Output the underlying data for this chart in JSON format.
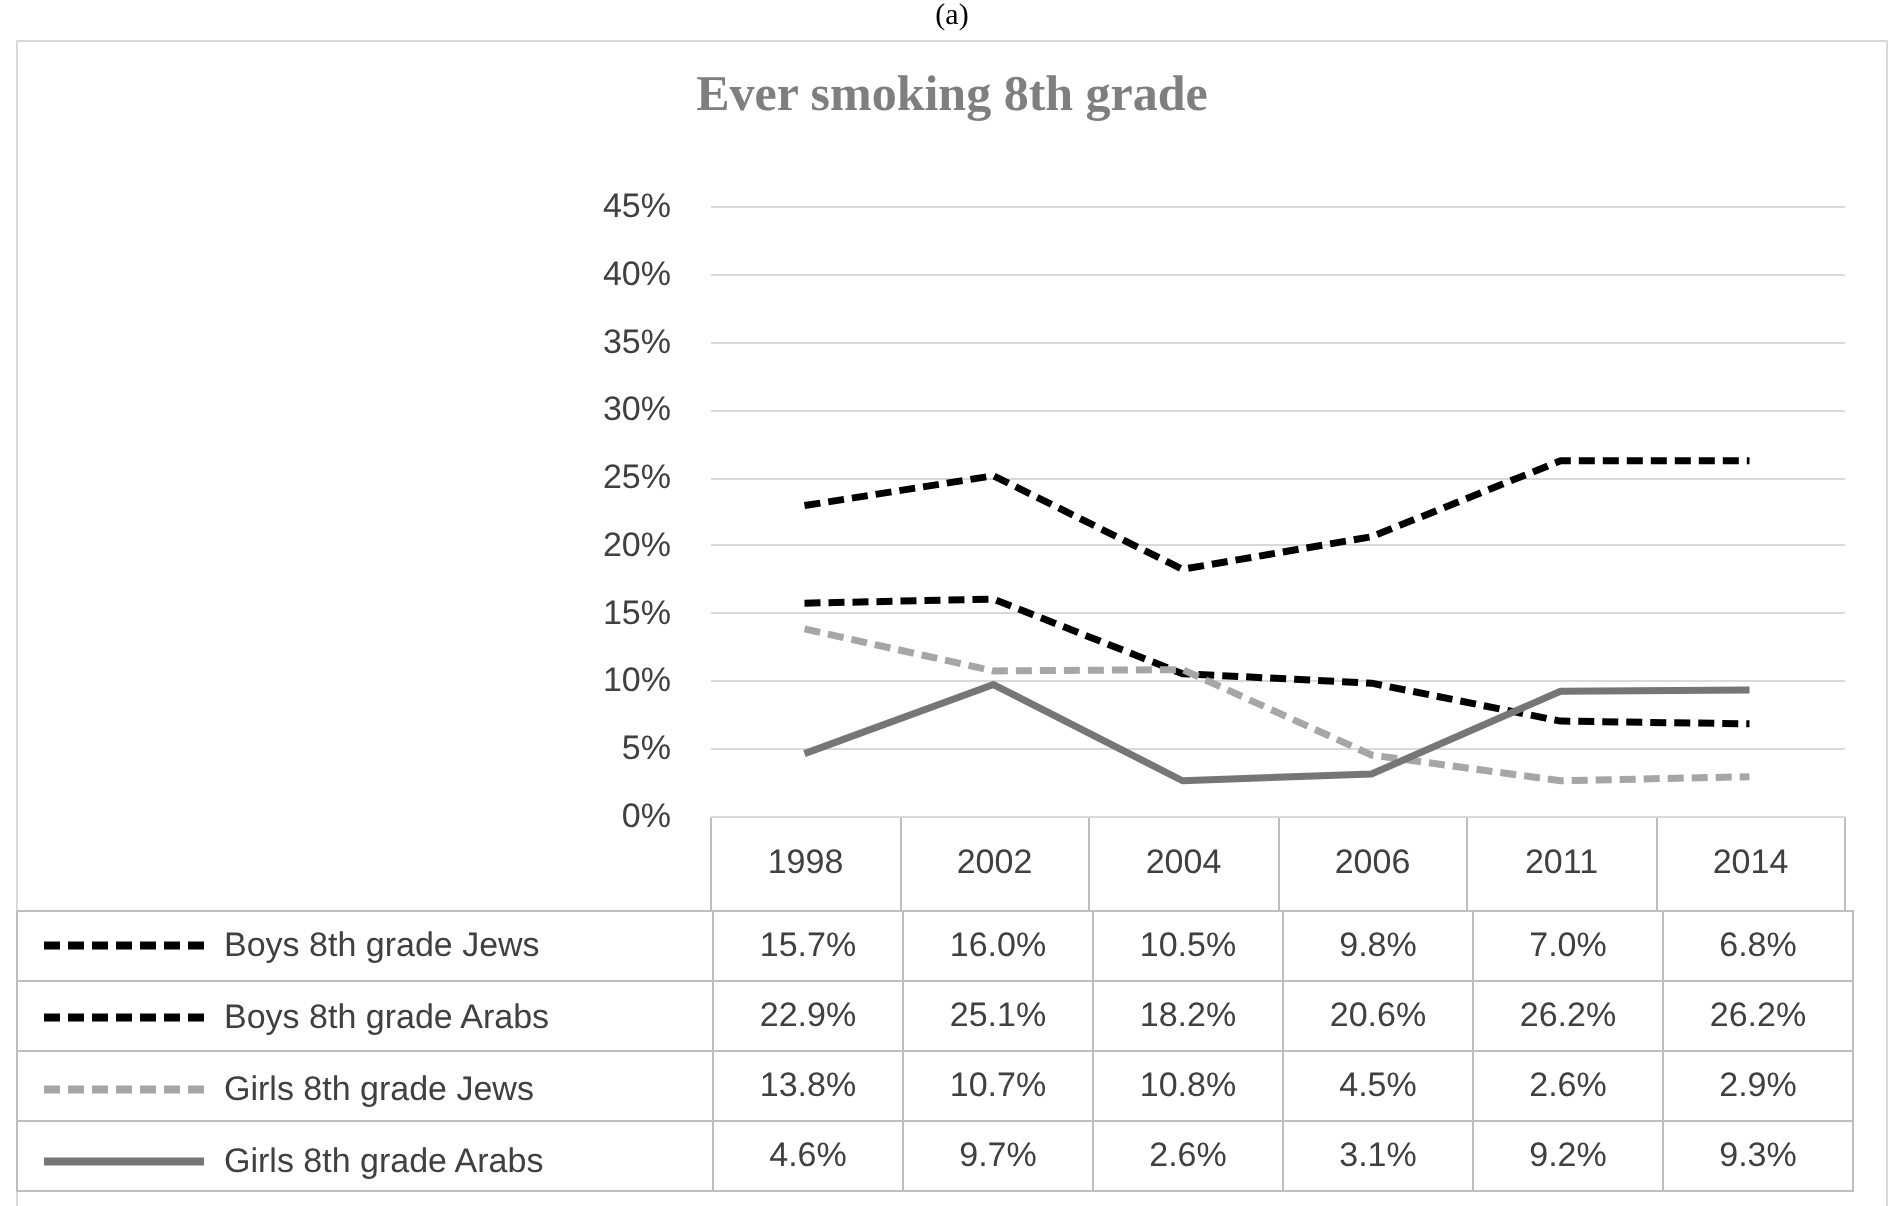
{
  "chart_data": {
    "type": "line",
    "title": "Ever smoking 8th grade",
    "annotations": [
      "(a)"
    ],
    "categories": [
      "1998",
      "2002",
      "2004",
      "2006",
      "2011",
      "2014"
    ],
    "series": [
      {
        "name": "Boys 8th grade Jews",
        "color": "#000000",
        "line_style": "dashed",
        "values": [
          15.7,
          16.0,
          10.5,
          9.8,
          7.0,
          6.8
        ],
        "value_labels": [
          "15.7%",
          "16.0%",
          "10.5%",
          "9.8%",
          "7.0%",
          "6.8%"
        ]
      },
      {
        "name": "Boys 8th grade Arabs",
        "color": "#000000",
        "line_style": "dashed",
        "values": [
          22.9,
          25.1,
          18.2,
          20.6,
          26.2,
          26.2
        ],
        "value_labels": [
          "22.9%",
          "25.1%",
          "18.2%",
          "20.6%",
          "26.2%",
          "26.2%"
        ]
      },
      {
        "name": "Girls 8th grade Jews",
        "color": "#a6a6a6",
        "line_style": "dashed",
        "values": [
          13.8,
          10.7,
          10.8,
          4.5,
          2.6,
          2.9
        ],
        "value_labels": [
          "13.8%",
          "10.7%",
          "10.8%",
          "4.5%",
          "2.6%",
          "2.9%"
        ]
      },
      {
        "name": "Girls 8th grade Arabs",
        "color": "#767676",
        "line_style": "solid",
        "values": [
          4.6,
          9.7,
          2.6,
          3.1,
          9.2,
          9.3
        ],
        "value_labels": [
          "4.6%",
          "9.7%",
          "2.6%",
          "3.1%",
          "9.2%",
          "9.3%"
        ]
      }
    ],
    "ylim": [
      0,
      45
    ],
    "yticks": [
      {
        "value": 0,
        "label": "0%"
      },
      {
        "value": 5,
        "label": "5%"
      },
      {
        "value": 10,
        "label": "10%"
      },
      {
        "value": 15,
        "label": "15%"
      },
      {
        "value": 20,
        "label": "20%"
      },
      {
        "value": 25,
        "label": "25%"
      },
      {
        "value": 30,
        "label": "30%"
      },
      {
        "value": 35,
        "label": "35%"
      },
      {
        "value": 40,
        "label": "40%"
      },
      {
        "value": 45,
        "label": "45%"
      }
    ],
    "grid": "y",
    "legend": "bottom",
    "marker": "none"
  }
}
